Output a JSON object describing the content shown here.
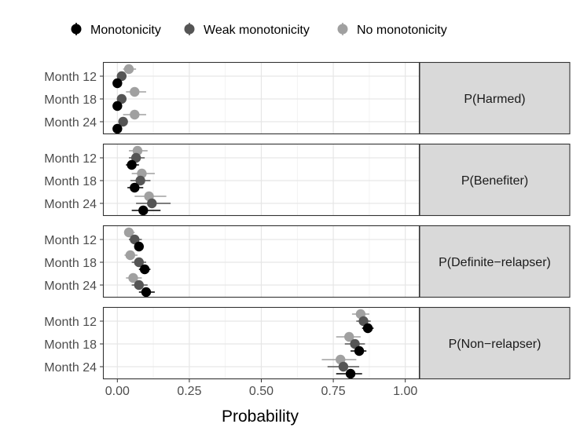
{
  "chart_data": {
    "type": "scatter",
    "subtype": "faceted dot-and-whisker (point estimates with interval bars)",
    "xlabel": "Probability",
    "xlim": [
      -0.05,
      1.05
    ],
    "xticks": [
      0.0,
      0.25,
      0.5,
      0.75,
      1.0
    ],
    "xtick_labels": [
      "0.00",
      "0.25",
      "0.50",
      "0.75",
      "1.00"
    ],
    "categories": [
      "Month 12",
      "Month 18",
      "Month 24"
    ],
    "legend_position": "top",
    "grid": true,
    "series": [
      {
        "name": "Monotonicity",
        "color": "#000000"
      },
      {
        "name": "Weak monotonicity",
        "color": "#555555"
      },
      {
        "name": "No monotonicity",
        "color": "#a0a0a0"
      }
    ],
    "facets": [
      {
        "label": "P(Harmed)",
        "points": [
          {
            "category": "Month 12",
            "series": "No monotonicity",
            "x": 0.04,
            "lo": 0.02,
            "hi": 0.065
          },
          {
            "category": "Month 12",
            "series": "Weak monotonicity",
            "x": 0.015,
            "lo": 0.005,
            "hi": 0.03
          },
          {
            "category": "Month 12",
            "series": "Monotonicity",
            "x": 0.0,
            "lo": 0.0,
            "hi": 0.005
          },
          {
            "category": "Month 18",
            "series": "No monotonicity",
            "x": 0.06,
            "lo": 0.03,
            "hi": 0.1
          },
          {
            "category": "Month 18",
            "series": "Weak monotonicity",
            "x": 0.015,
            "lo": 0.005,
            "hi": 0.03
          },
          {
            "category": "Month 18",
            "series": "Monotonicity",
            "x": 0.0,
            "lo": 0.0,
            "hi": 0.005
          },
          {
            "category": "Month 24",
            "series": "No monotonicity",
            "x": 0.06,
            "lo": 0.02,
            "hi": 0.1
          },
          {
            "category": "Month 24",
            "series": "Weak monotonicity",
            "x": 0.02,
            "lo": 0.005,
            "hi": 0.035
          },
          {
            "category": "Month 24",
            "series": "Monotonicity",
            "x": 0.0,
            "lo": 0.0,
            "hi": 0.005
          }
        ]
      },
      {
        "label": "P(Benefiter)",
        "points": [
          {
            "category": "Month 12",
            "series": "No monotonicity",
            "x": 0.07,
            "lo": 0.04,
            "hi": 0.105
          },
          {
            "category": "Month 12",
            "series": "Weak monotonicity",
            "x": 0.065,
            "lo": 0.04,
            "hi": 0.095
          },
          {
            "category": "Month 12",
            "series": "Monotonicity",
            "x": 0.05,
            "lo": 0.03,
            "hi": 0.075
          },
          {
            "category": "Month 18",
            "series": "No monotonicity",
            "x": 0.085,
            "lo": 0.05,
            "hi": 0.13
          },
          {
            "category": "Month 18",
            "series": "Weak monotonicity",
            "x": 0.08,
            "lo": 0.045,
            "hi": 0.115
          },
          {
            "category": "Month 18",
            "series": "Monotonicity",
            "x": 0.06,
            "lo": 0.035,
            "hi": 0.09
          },
          {
            "category": "Month 24",
            "series": "No monotonicity",
            "x": 0.11,
            "lo": 0.06,
            "hi": 0.17
          },
          {
            "category": "Month 24",
            "series": "Weak monotonicity",
            "x": 0.12,
            "lo": 0.065,
            "hi": 0.185
          },
          {
            "category": "Month 24",
            "series": "Monotonicity",
            "x": 0.09,
            "lo": 0.05,
            "hi": 0.15
          }
        ]
      },
      {
        "label": "P(Definite−relapser)",
        "points": [
          {
            "category": "Month 12",
            "series": "No monotonicity",
            "x": 0.04,
            "lo": 0.025,
            "hi": 0.06
          },
          {
            "category": "Month 12",
            "series": "Weak monotonicity",
            "x": 0.06,
            "lo": 0.04,
            "hi": 0.085
          },
          {
            "category": "Month 12",
            "series": "Monotonicity",
            "x": 0.075,
            "lo": 0.06,
            "hi": 0.09
          },
          {
            "category": "Month 18",
            "series": "No monotonicity",
            "x": 0.045,
            "lo": 0.025,
            "hi": 0.07
          },
          {
            "category": "Month 18",
            "series": "Weak monotonicity",
            "x": 0.075,
            "lo": 0.05,
            "hi": 0.1
          },
          {
            "category": "Month 18",
            "series": "Monotonicity",
            "x": 0.095,
            "lo": 0.075,
            "hi": 0.115
          },
          {
            "category": "Month 24",
            "series": "No monotonicity",
            "x": 0.055,
            "lo": 0.03,
            "hi": 0.085
          },
          {
            "category": "Month 24",
            "series": "Weak monotonicity",
            "x": 0.075,
            "lo": 0.05,
            "hi": 0.105
          },
          {
            "category": "Month 24",
            "series": "Monotonicity",
            "x": 0.1,
            "lo": 0.075,
            "hi": 0.13
          }
        ]
      },
      {
        "label": "P(Non−relapser)",
        "points": [
          {
            "category": "Month 12",
            "series": "No monotonicity",
            "x": 0.845,
            "lo": 0.815,
            "hi": 0.875
          },
          {
            "category": "Month 12",
            "series": "Weak monotonicity",
            "x": 0.855,
            "lo": 0.83,
            "hi": 0.88
          },
          {
            "category": "Month 12",
            "series": "Monotonicity",
            "x": 0.87,
            "lo": 0.85,
            "hi": 0.89
          },
          {
            "category": "Month 18",
            "series": "No monotonicity",
            "x": 0.805,
            "lo": 0.76,
            "hi": 0.845
          },
          {
            "category": "Month 18",
            "series": "Weak monotonicity",
            "x": 0.825,
            "lo": 0.79,
            "hi": 0.86
          },
          {
            "category": "Month 18",
            "series": "Monotonicity",
            "x": 0.84,
            "lo": 0.81,
            "hi": 0.865
          },
          {
            "category": "Month 24",
            "series": "No monotonicity",
            "x": 0.775,
            "lo": 0.71,
            "hi": 0.83
          },
          {
            "category": "Month 24",
            "series": "Weak monotonicity",
            "x": 0.785,
            "lo": 0.73,
            "hi": 0.84
          },
          {
            "category": "Month 24",
            "series": "Monotonicity",
            "x": 0.81,
            "lo": 0.76,
            "hi": 0.85
          }
        ]
      }
    ]
  }
}
